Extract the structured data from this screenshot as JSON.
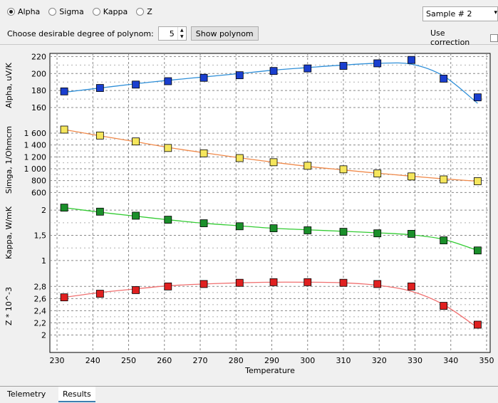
{
  "toolbar": {
    "radios": [
      {
        "label": "Alpha",
        "checked": true
      },
      {
        "label": "Sigma",
        "checked": false
      },
      {
        "label": "Kappa",
        "checked": false
      },
      {
        "label": "Z",
        "checked": false
      }
    ],
    "degree_label": "Choose desirable degree of polynom:",
    "degree_value": "5",
    "show_button": "Show polynom",
    "sample_select": "Sample # 2",
    "use_correction": "Use correction"
  },
  "tabs": [
    {
      "label": "Telemetry",
      "active": false
    },
    {
      "label": "Results",
      "active": true
    }
  ],
  "colors": {
    "alpha_line": "#2f8fd8",
    "alpha_marker": "#1a3fcf",
    "sigma_line": "#f08a4b",
    "sigma_marker": "#f5e65c",
    "kappa_line": "#33cc33",
    "kappa_marker": "#1a8f2a",
    "z_line": "#f07070",
    "z_marker": "#e02020"
  },
  "chart_data": {
    "type": "scatter",
    "xlabel": "Temperature",
    "x_ticks": [
      "230",
      "240",
      "250",
      "260",
      "270",
      "280",
      "290",
      "300",
      "310",
      "320",
      "330",
      "340",
      "350"
    ],
    "xlim": [
      228,
      351
    ],
    "x": [
      232,
      242,
      252,
      261,
      271,
      281,
      290.5,
      300,
      310,
      319.5,
      329,
      338,
      347.5
    ],
    "panels": [
      {
        "ylabel": "Alpha, uV/K",
        "ylim": [
          150,
          222
        ],
        "y_ticks": [
          "220",
          "200",
          "180",
          "160"
        ],
        "y_tick_values": [
          220,
          200,
          180,
          160
        ],
        "values": [
          179,
          183,
          187,
          191,
          195,
          198,
          203,
          206,
          209,
          212,
          216,
          194,
          172
        ],
        "fit": [
          178,
          183,
          188,
          192,
          196,
          200,
          204,
          207,
          210,
          212,
          211,
          197,
          165
        ]
      },
      {
        "ylabel": "Simga, 1/Ohmcm",
        "ylim": [
          520,
          1780
        ],
        "y_ticks": [
          "1 600",
          "1 400",
          "1 200",
          "1 000",
          "800",
          "600"
        ],
        "y_tick_values": [
          1600,
          1400,
          1200,
          1000,
          800,
          600
        ],
        "values": [
          1660,
          1560,
          1460,
          1350,
          1260,
          1180,
          1110,
          1050,
          990,
          920,
          870,
          820,
          790
        ],
        "fit": [
          1660,
          1555,
          1455,
          1360,
          1270,
          1185,
          1110,
          1040,
          980,
          925,
          875,
          830,
          790
        ]
      },
      {
        "ylabel": "Kappa, W/mK",
        "ylim": [
          0.9,
          2.2
        ],
        "y_ticks": [
          "2",
          "1,5",
          "1"
        ],
        "y_tick_values": [
          2,
          1.5,
          1
        ],
        "values": [
          2.05,
          1.97,
          1.89,
          1.81,
          1.74,
          1.68,
          1.64,
          1.6,
          1.57,
          1.54,
          1.53,
          1.4,
          1.2
        ],
        "fit": [
          2.05,
          1.96,
          1.88,
          1.81,
          1.74,
          1.69,
          1.64,
          1.61,
          1.58,
          1.55,
          1.51,
          1.42,
          1.2
        ]
      },
      {
        "ylabel": "Z * 10^-3",
        "ylim": [
          1.9,
          3.05
        ],
        "y_ticks": [
          "2,8",
          "2,6",
          "2,4",
          "2,2",
          "2"
        ],
        "y_tick_values": [
          2.8,
          2.6,
          2.4,
          2.2,
          2
        ],
        "values": [
          2.62,
          2.68,
          2.74,
          2.8,
          2.84,
          2.86,
          2.87,
          2.87,
          2.86,
          2.84,
          2.8,
          2.48,
          2.17
        ],
        "fit": [
          2.62,
          2.7,
          2.76,
          2.81,
          2.84,
          2.86,
          2.87,
          2.87,
          2.86,
          2.82,
          2.72,
          2.5,
          2.12
        ]
      }
    ]
  }
}
